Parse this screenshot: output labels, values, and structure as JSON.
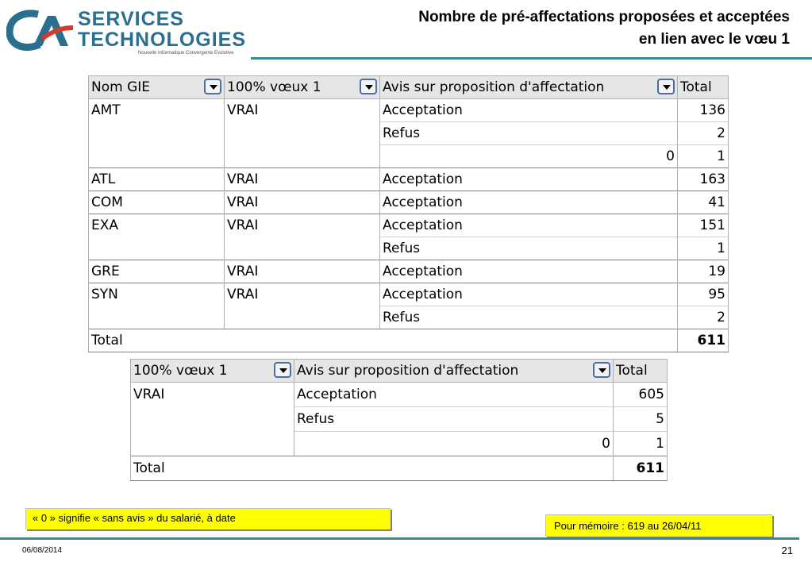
{
  "logo": {
    "line1": "SERVICES",
    "line2": "TECHNOLOGIES",
    "tagline": "Nouvelle Informatique Convergente Evolutive",
    "mark_color": "#2a6f8f",
    "accent_color": "#d63a2a"
  },
  "title": {
    "line1": "Nombre de pré-affectations proposées et acceptées",
    "line2": "en lien avec le vœu 1"
  },
  "table1": {
    "headers": [
      "Nom GIE",
      "100% vœux 1",
      "Avis sur proposition d'affectation",
      "Total"
    ],
    "rows": [
      [
        "AMT",
        "VRAI",
        "Acceptation",
        "136"
      ],
      [
        "",
        "",
        "Refus",
        "2"
      ],
      [
        "",
        "",
        "0",
        "1"
      ],
      [
        "ATL",
        "VRAI",
        "Acceptation",
        "163"
      ],
      [
        "COM",
        "VRAI",
        "Acceptation",
        "41"
      ],
      [
        "EXA",
        "VRAI",
        "Acceptation",
        "151"
      ],
      [
        "",
        "",
        "Refus",
        "1"
      ],
      [
        "GRE",
        "VRAI",
        "Acceptation",
        "19"
      ],
      [
        "SYN",
        "VRAI",
        "Acceptation",
        "95"
      ],
      [
        "",
        "",
        "Refus",
        "2"
      ]
    ],
    "total_label": "Total",
    "total_value": "611"
  },
  "table2": {
    "headers": [
      "100% vœux 1",
      "Avis sur proposition d'affectation",
      "Total"
    ],
    "rows": [
      [
        "VRAI",
        "Acceptation",
        "605"
      ],
      [
        "",
        "Refus",
        "5"
      ],
      [
        "",
        "0",
        "1"
      ]
    ],
    "total_label": "Total",
    "total_value": "611"
  },
  "notes": {
    "note1": "« 0 » signifie « sans avis » du salarié, à date",
    "note2": "Pour mémoire : 619 au 26/04/11"
  },
  "footer": {
    "date": "06/08/2014",
    "page": "21"
  },
  "colors": {
    "rule": "#3a8a9a",
    "note_bg": "#ffff00",
    "header_bg": "#e6e6e6"
  }
}
